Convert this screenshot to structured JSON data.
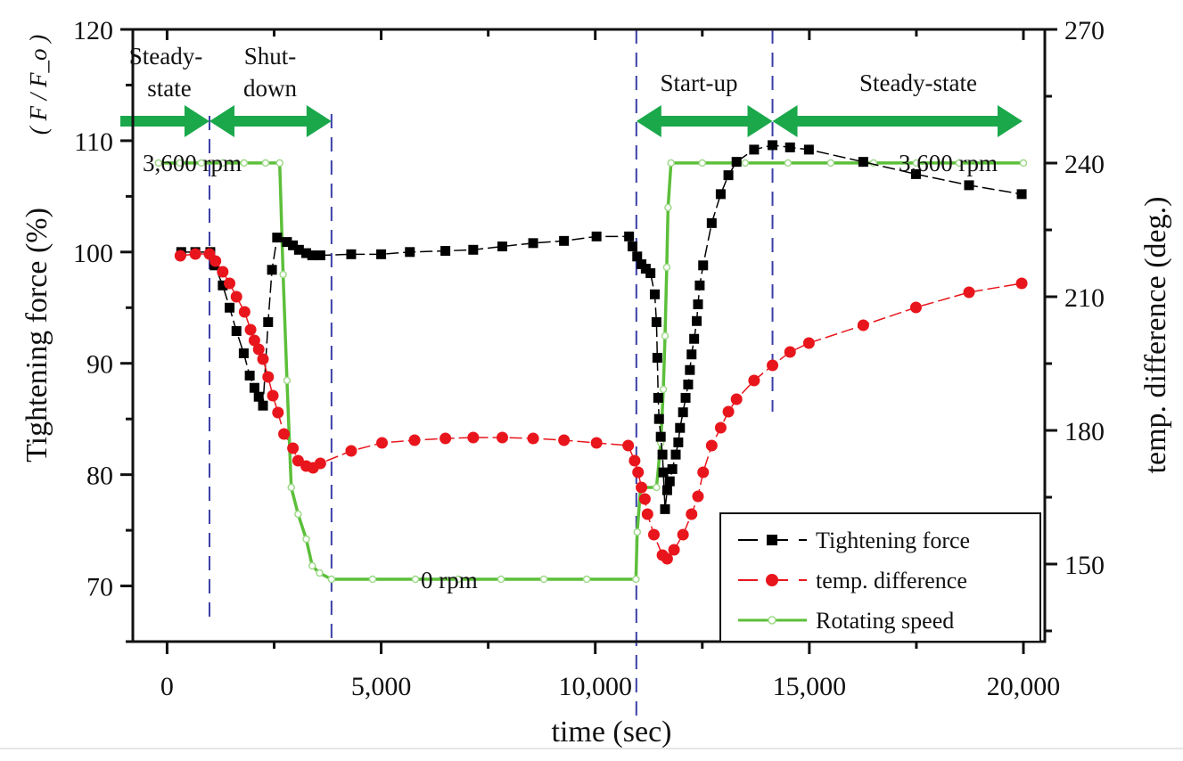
{
  "chart_data": {
    "type": "line",
    "xlabel": "time (sec)",
    "ylabel": "Tightening force (%)",
    "ylabel_unit": "( F / F_o )",
    "y2label": "temp. difference (deg.)",
    "xlim": [
      -800,
      20500
    ],
    "ylim": [
      65,
      120
    ],
    "y2lim": [
      132.6,
      270
    ],
    "x_ticks": [
      0,
      5000,
      10000,
      15000,
      20000
    ],
    "x_tick_labels": [
      "0",
      "5,000",
      "10,000",
      "15,000",
      "20,000"
    ],
    "y_ticks": [
      70,
      80,
      90,
      100,
      110,
      120
    ],
    "y_tick_labels": [
      "70",
      "80",
      "90",
      "100",
      "110",
      "120"
    ],
    "y2_ticks": [
      150,
      180,
      210,
      240,
      270
    ],
    "y2_tick_labels": [
      "150",
      "180",
      "210",
      "240",
      "270"
    ],
    "grid": false,
    "legend_position": "bottom-right",
    "colors": {
      "force": "#000000",
      "temp": "#e8161c",
      "speed": "#5cbf3a",
      "phase_line": "#3a3fa8",
      "arrow": "#1aa84a"
    },
    "series": [
      {
        "name": "Tightening force",
        "axis": "left",
        "marker": "square",
        "x": [
          330,
          660,
          1010,
          1110,
          1300,
          1460,
          1620,
          1790,
          1930,
          2040,
          2140,
          2240,
          2360,
          2450,
          2570,
          2800,
          2940,
          3080,
          3250,
          3390,
          3580,
          4300,
          5000,
          5670,
          6500,
          7150,
          7830,
          8550,
          9270,
          10030,
          10790,
          10870,
          10980,
          11080,
          11180,
          11290,
          11390,
          11430,
          11450,
          11470,
          11490,
          11530,
          11570,
          11590,
          11630,
          11680,
          11740,
          11800,
          11880,
          11940,
          11980,
          12050,
          12110,
          12170,
          12210,
          12250,
          12310,
          12370,
          12400,
          12440,
          12520,
          12720,
          12930,
          13110,
          13300,
          13710,
          14140,
          14550,
          14990,
          16260,
          17490,
          18730,
          19960
        ],
        "y": [
          100.0,
          100.0,
          100.0,
          98.8,
          97.0,
          95.0,
          92.9,
          90.9,
          88.9,
          87.8,
          87.0,
          86.2,
          93.7,
          98.4,
          101.3,
          100.9,
          100.6,
          100.2,
          99.9,
          99.7,
          99.7,
          99.8,
          99.8,
          100.0,
          100.1,
          100.2,
          100.5,
          100.8,
          101.0,
          101.4,
          101.4,
          100.5,
          99.6,
          98.9,
          98.5,
          98.1,
          96.2,
          93.7,
          90.5,
          86.9,
          85.0,
          83.4,
          81.8,
          80.2,
          76.9,
          78.6,
          79.4,
          80.5,
          81.8,
          82.9,
          84.2,
          85.6,
          86.9,
          88.1,
          89.4,
          90.8,
          92.2,
          93.8,
          95.3,
          97.0,
          98.8,
          102.6,
          105.2,
          106.9,
          108.1,
          109.2,
          109.6,
          109.4,
          109.2,
          108.1,
          107.0,
          106.0,
          105.2
        ]
      },
      {
        "name": "temp. difference",
        "axis": "right",
        "marker": "circle",
        "x": [
          310,
          660,
          990,
          1130,
          1300,
          1460,
          1620,
          1810,
          1950,
          2040,
          2140,
          2240,
          2360,
          2470,
          2590,
          2730,
          2940,
          3060,
          3250,
          3410,
          3580,
          4300,
          5020,
          5780,
          6500,
          7150,
          7830,
          8550,
          9270,
          10030,
          10770,
          10920,
          11000,
          11080,
          11160,
          11220,
          11370,
          11570,
          11680,
          11840,
          12050,
          12250,
          12400,
          12520,
          12720,
          12930,
          13110,
          13300,
          13710,
          14140,
          14550,
          14990,
          16260,
          17490,
          18730,
          19960
        ],
        "y": [
          219.2,
          219.6,
          219.6,
          218.0,
          215.6,
          213.0,
          210.0,
          206.6,
          202.6,
          200.2,
          198.2,
          196.0,
          192.0,
          187.8,
          184.0,
          179.2,
          176.0,
          173.2,
          172.0,
          171.6,
          172.6,
          175.4,
          177.2,
          177.8,
          178.2,
          178.4,
          178.4,
          178.2,
          177.8,
          177.2,
          176.6,
          173.2,
          170.6,
          167.2,
          164.6,
          161.2,
          156.6,
          152.0,
          151.2,
          153.2,
          156.6,
          161.2,
          165.2,
          170.6,
          176.6,
          180.6,
          184.2,
          187.0,
          191.2,
          194.6,
          197.6,
          199.6,
          203.6,
          207.6,
          211.0,
          213.0
        ]
      },
      {
        "name": "Rotating speed",
        "unit": "rpm",
        "marker": "open-circle",
        "x": [
          -200,
          300,
          800,
          1300,
          1800,
          2300,
          2630,
          2710,
          2800,
          2900,
          3060,
          3250,
          3390,
          3560,
          3840,
          4800,
          5800,
          6800,
          7800,
          8800,
          9800,
          10950,
          10980,
          11060,
          11430,
          11530,
          11590,
          11630,
          11670,
          11700,
          11770,
          12500,
          13500,
          14500,
          15500,
          16500,
          17500,
          18500,
          20000
        ],
        "y": [
          3600,
          3600,
          3600,
          3600,
          3600,
          3600,
          3600,
          2636,
          1719,
          794,
          563,
          347,
          116,
          54,
          0,
          0,
          0,
          0,
          0,
          0,
          0,
          0,
          408,
          794,
          794,
          1179,
          1642,
          2105,
          2698,
          3215,
          3600,
          3600,
          3600,
          3600,
          3600,
          3600,
          3600,
          3600,
          3600
        ]
      }
    ],
    "phase_boundaries": [
      990,
      3840,
      10960,
      14140
    ],
    "annotations": {
      "phase_steady_1": [
        "Steady-",
        "state"
      ],
      "phase_shutdown": [
        "Shut-",
        "down"
      ],
      "phase_startup": "Start-up",
      "phase_steady_2": "Steady-state",
      "speed_high_left": "3,600 rpm",
      "speed_high_right": "3,600 rpm",
      "speed_zero": "0 rpm"
    }
  }
}
